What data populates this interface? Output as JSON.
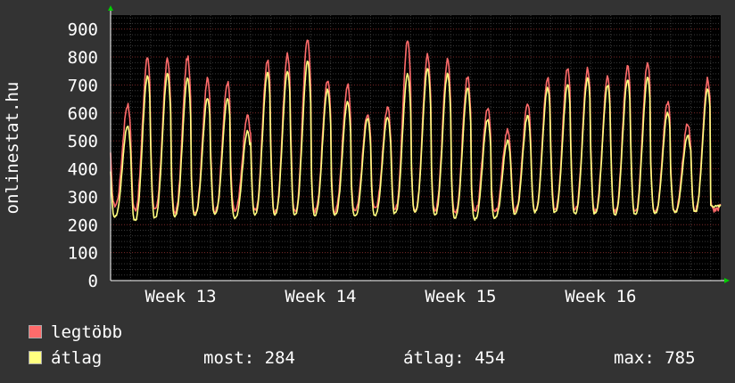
{
  "chart_data": {
    "type": "line",
    "ylabel": "onlinestat.hu",
    "ylim": [
      0,
      950
    ],
    "yticks": [
      0,
      100,
      200,
      300,
      400,
      500,
      600,
      700,
      800,
      900
    ],
    "xtick_labels": [
      "Week 13",
      "Week 14",
      "Week 15",
      "Week 16"
    ],
    "xtick_days": [
      3.5,
      10.5,
      17.5,
      24.5
    ],
    "x_range_days": [
      0,
      30.5
    ],
    "grid": true,
    "legend_placement": "bottom",
    "series": [
      {
        "name": "legtöbb",
        "color": "#ff6b6b",
        "daily_min": [
          270,
          255,
          250,
          245,
          245,
          250,
          250,
          250,
          245,
          245,
          250,
          250,
          255,
          255,
          255,
          250,
          250,
          245,
          245,
          245,
          250,
          255,
          255,
          250,
          250,
          245,
          245,
          245,
          250,
          250,
          250
        ],
        "daily_max": [
          630,
          800,
          790,
          800,
          720,
          710,
          590,
          790,
          810,
          870,
          720,
          700,
          600,
          620,
          860,
          810,
          790,
          730,
          620,
          540,
          630,
          730,
          760,
          760,
          730,
          770,
          780,
          640,
          560,
          720,
          340
        ]
      },
      {
        "name": "átlag",
        "color": "#ffff80",
        "daily_min": [
          230,
          215,
          225,
          230,
          235,
          240,
          225,
          235,
          235,
          235,
          235,
          235,
          230,
          235,
          240,
          245,
          235,
          225,
          220,
          225,
          240,
          245,
          245,
          240,
          240,
          235,
          235,
          240,
          245,
          245,
          265
        ],
        "daily_max": [
          555,
          735,
          740,
          725,
          655,
          650,
          535,
          745,
          750,
          785,
          685,
          640,
          580,
          585,
          740,
          760,
          740,
          690,
          575,
          500,
          590,
          690,
          700,
          725,
          700,
          720,
          730,
          600,
          520,
          685,
          280
        ]
      }
    ]
  },
  "legend": {
    "items": [
      {
        "label": "legtöbb",
        "color": "#ff6b6b"
      },
      {
        "label": "átlag",
        "color": "#ffff80"
      }
    ],
    "stats": {
      "now_label": "most:",
      "now_value": "284",
      "avg_label": "átlag:",
      "avg_value": "454",
      "max_label": "max:",
      "max_value": "785"
    }
  }
}
